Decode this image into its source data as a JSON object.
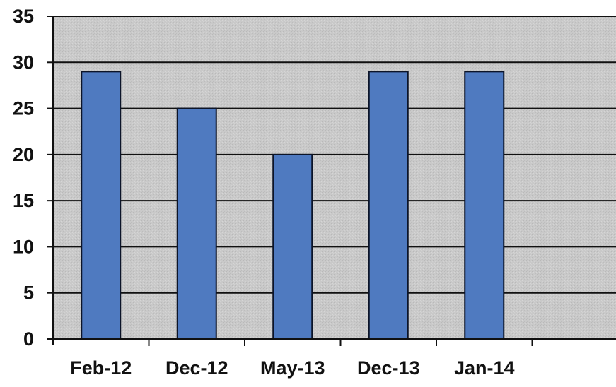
{
  "chart_data": {
    "type": "bar",
    "title": "",
    "xlabel": "",
    "ylabel": "",
    "categories": [
      "Feb-12",
      "Dec-12",
      "May-13",
      "Dec-13",
      "Jan-14"
    ],
    "values": [
      29,
      25,
      20,
      29,
      29
    ],
    "ylim": [
      0,
      35
    ],
    "yticks": [
      0,
      5,
      10,
      15,
      20,
      25,
      30,
      35
    ],
    "grid": true,
    "legend": "none",
    "colors": {
      "bar": "#4f7ac0",
      "bar_edge": "#0c1428",
      "plot_background": "#c8c8c8",
      "gridline": "#111111"
    }
  }
}
